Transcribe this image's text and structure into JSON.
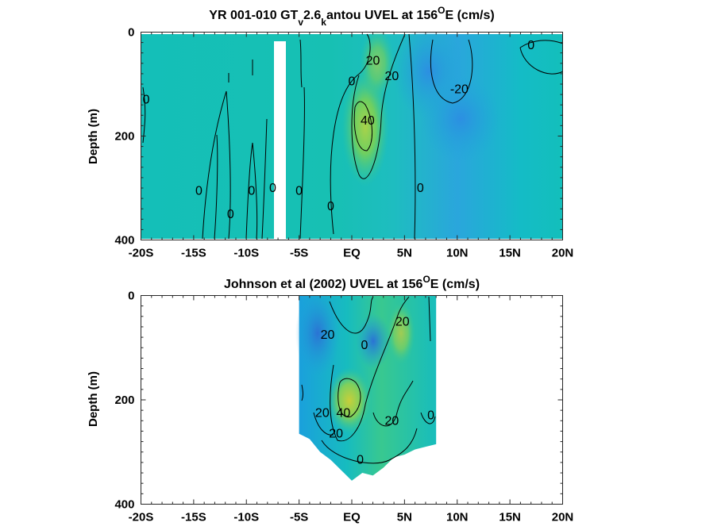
{
  "colors": {
    "background": "#ffffff",
    "axis": "#262626",
    "contour": "#000000",
    "colormap": [
      "#2b6fd0",
      "#1e9be0",
      "#12bcc0",
      "#2fc79a",
      "#7fd05c",
      "#c9cf3c"
    ]
  },
  "chart_data": [
    {
      "type": "heatmap",
      "title_main": "YR 001-010 GT",
      "title_sub1": "v",
      "title_mid": "2.6",
      "title_sub2": "k",
      "title_tail": "antou UVEL at 156",
      "title_sup": "O",
      "title_end": "E (cm/s)",
      "ylabel": "Depth (m)",
      "xlim": [
        -20,
        20
      ],
      "ylim": [
        400,
        0
      ],
      "xticks": [
        -20,
        -15,
        -10,
        -5,
        0,
        5,
        10,
        15,
        20
      ],
      "xtick_labels": [
        "-20S",
        "-15S",
        "-10S",
        "-5S",
        "EQ",
        "5N",
        "10N",
        "15N",
        "20N"
      ],
      "yticks": [
        0,
        200,
        400
      ],
      "ytick_labels": [
        "0",
        "200",
        "400"
      ],
      "data_lat_range": [
        -20,
        20
      ],
      "data_depth_range": [
        5,
        395
      ],
      "gap": {
        "lat_range": [
          -7.3,
          -6.2
        ],
        "depth_range": [
          10,
          395
        ]
      },
      "max_core": {
        "lat": 1.5,
        "depth": 160,
        "value": 45
      },
      "min_core": {
        "lat": 10,
        "depth": 90,
        "value": -25
      },
      "contour_labels": [
        {
          "text": "0",
          "lat": -19.5,
          "depth": 130
        },
        {
          "text": "0",
          "lat": -14.5,
          "depth": 305
        },
        {
          "text": "0",
          "lat": -11.5,
          "depth": 350
        },
        {
          "text": "0",
          "lat": -9.5,
          "depth": 305
        },
        {
          "text": "0",
          "lat": -7.5,
          "depth": 300
        },
        {
          "text": "0",
          "lat": -5,
          "depth": 305
        },
        {
          "text": "0",
          "lat": -2,
          "depth": 335
        },
        {
          "text": "0",
          "lat": 0,
          "depth": 95
        },
        {
          "text": "20",
          "lat": 2,
          "depth": 55
        },
        {
          "text": "20",
          "lat": 3.8,
          "depth": 85
        },
        {
          "text": "40",
          "lat": 1.5,
          "depth": 170
        },
        {
          "text": "0",
          "lat": 6.5,
          "depth": 300
        },
        {
          "text": "-20",
          "lat": 10.2,
          "depth": 110
        },
        {
          "text": "0",
          "lat": 17,
          "depth": 25
        }
      ]
    },
    {
      "type": "heatmap",
      "title_main": "Johnson et al (2002) UVEL at 156",
      "title_sup": "O",
      "title_end": "E (cm/s)",
      "ylabel": "Depth (m)",
      "xlim": [
        -20,
        20
      ],
      "ylim": [
        400,
        0
      ],
      "xticks": [
        -20,
        -15,
        -10,
        -5,
        0,
        5,
        10,
        15,
        20
      ],
      "xtick_labels": [
        "-20S",
        "-15S",
        "-10S",
        "-5S",
        "EQ",
        "5N",
        "10N",
        "15N",
        "20N"
      ],
      "yticks": [
        0,
        200,
        400
      ],
      "ytick_labels": [
        "0",
        "200",
        "400"
      ],
      "data_lat_range": [
        -5,
        8
      ],
      "bottom_edge": [
        {
          "lat": -5,
          "depth": 265
        },
        {
          "lat": -4,
          "depth": 275
        },
        {
          "lat": -3,
          "depth": 300
        },
        {
          "lat": -2,
          "depth": 315
        },
        {
          "lat": -1,
          "depth": 335
        },
        {
          "lat": 0,
          "depth": 355
        },
        {
          "lat": 1,
          "depth": 340
        },
        {
          "lat": 2,
          "depth": 345
        },
        {
          "lat": 3,
          "depth": 330
        },
        {
          "lat": 4,
          "depth": 310
        },
        {
          "lat": 5,
          "depth": 305
        },
        {
          "lat": 6,
          "depth": 295
        },
        {
          "lat": 7,
          "depth": 290
        },
        {
          "lat": 8,
          "depth": 285
        }
      ],
      "max_core": {
        "lat": 0,
        "depth": 195,
        "value": 45
      },
      "contour_labels": [
        {
          "text": "20",
          "lat": -2.3,
          "depth": 75
        },
        {
          "text": "0",
          "lat": 1.2,
          "depth": 95
        },
        {
          "text": "20",
          "lat": 4.8,
          "depth": 50
        },
        {
          "text": "20",
          "lat": -2.8,
          "depth": 225
        },
        {
          "text": "40",
          "lat": -0.8,
          "depth": 225
        },
        {
          "text": "20",
          "lat": -1.5,
          "depth": 265
        },
        {
          "text": "20",
          "lat": 3.8,
          "depth": 240
        },
        {
          "text": "0",
          "lat": 7.5,
          "depth": 230
        },
        {
          "text": "0",
          "lat": 0.8,
          "depth": 315
        }
      ]
    }
  ]
}
